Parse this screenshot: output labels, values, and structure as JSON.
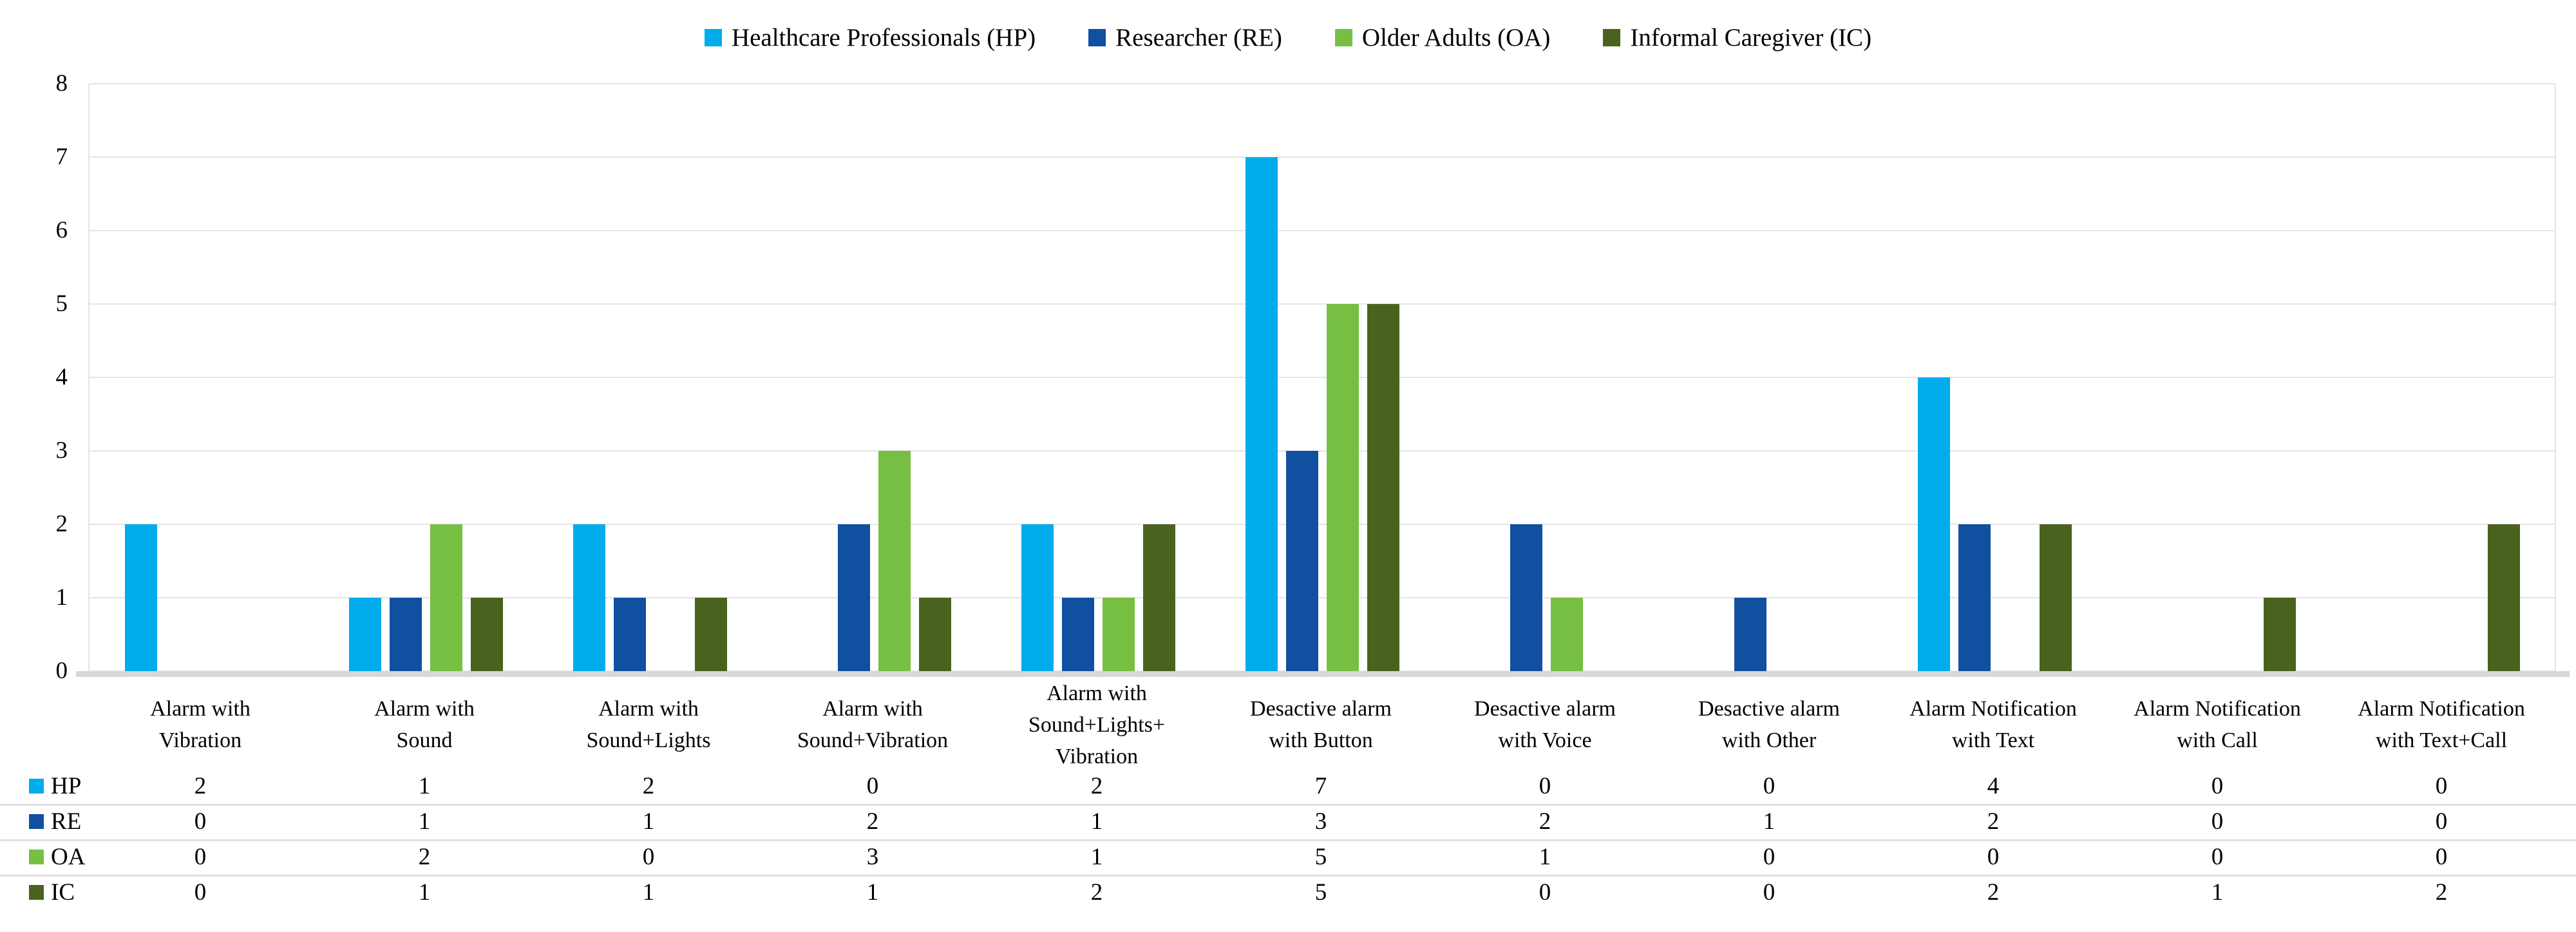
{
  "chart_data": {
    "type": "bar",
    "title": "",
    "xlabel": "",
    "ylabel": "",
    "ylim": [
      0,
      8
    ],
    "yticks": [
      0,
      1,
      2,
      3,
      4,
      5,
      6,
      7,
      8
    ],
    "grid": true,
    "legend_position": "top-center",
    "data_table_shown": true,
    "categories": [
      "Alarm with Vibration",
      "Alarm with Sound",
      "Alarm with Sound+Lights",
      "Alarm with Sound+Vibration",
      "Alarm with Sound+Lights+Vibration",
      "Desactive alarm with Button",
      "Desactive alarm with Voice",
      "Desactive alarm with Other",
      "Alarm Notification with Text",
      "Alarm Notification with Call",
      "Alarm Notification with Text+Call"
    ],
    "category_label_lines": [
      [
        "Alarm with",
        "Vibration"
      ],
      [
        "Alarm with",
        "Sound"
      ],
      [
        "Alarm with",
        "Sound+Lights"
      ],
      [
        "Alarm with",
        "Sound+Vibration"
      ],
      [
        "Alarm with",
        "Sound+Lights+",
        "Vibration"
      ],
      [
        "Desactive alarm",
        "with Button"
      ],
      [
        "Desactive alarm",
        "with Voice"
      ],
      [
        "Desactive alarm",
        "with Other"
      ],
      [
        "Alarm Notification",
        "with Text"
      ],
      [
        "Alarm Notification",
        "with Call"
      ],
      [
        "Alarm Notification",
        "with Text+Call"
      ]
    ],
    "series": [
      {
        "name": "Healthcare Professionals (HP)",
        "short": "HP",
        "color": "#00ACEC",
        "values": [
          2,
          1,
          2,
          0,
          2,
          7,
          0,
          0,
          4,
          0,
          0
        ]
      },
      {
        "name": "Researcher (RE)",
        "short": "RE",
        "color": "#1150A0",
        "values": [
          0,
          1,
          1,
          2,
          1,
          3,
          2,
          1,
          2,
          0,
          0
        ]
      },
      {
        "name": "Older Adults (OA)",
        "short": "OA",
        "color": "#77BF43",
        "values": [
          0,
          2,
          0,
          3,
          1,
          5,
          1,
          0,
          0,
          0,
          0
        ]
      },
      {
        "name": "Informal Caregiver (IC)",
        "short": "IC",
        "color": "#49631F",
        "values": [
          0,
          1,
          1,
          1,
          2,
          5,
          0,
          0,
          2,
          1,
          2
        ]
      }
    ],
    "colors": {
      "gridline": "#E4E4E4",
      "axis_band": "#D8D8D8",
      "row_separator": "#E0E0E0",
      "text": "#000000",
      "background": "#FFFFFF"
    }
  }
}
